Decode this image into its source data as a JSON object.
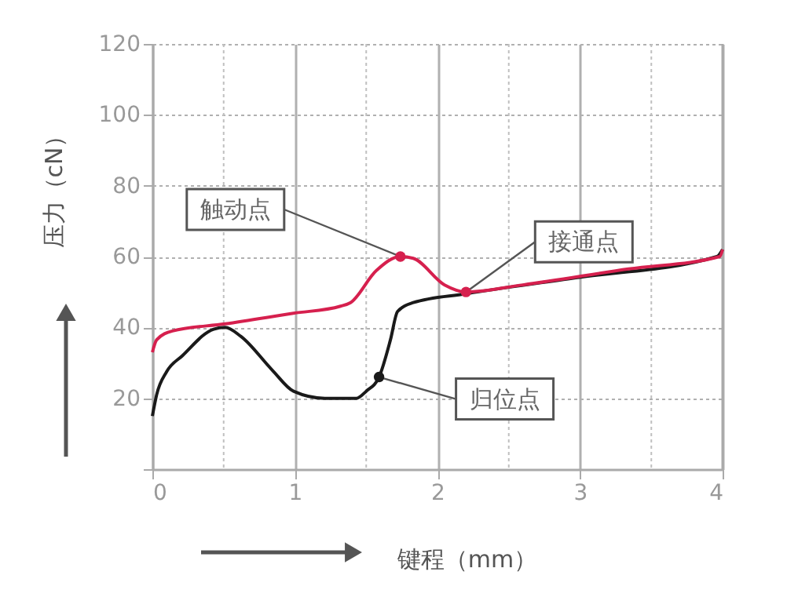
{
  "chart_data": {
    "type": "line",
    "xlabel": "键程（mm）",
    "ylabel": "压力（cN）",
    "xlim": [
      0,
      4
    ],
    "ylim": [
      0,
      120
    ],
    "xticks": [
      0,
      1,
      2,
      3,
      4
    ],
    "yticks": [
      {
        "value": 0,
        "label": null
      },
      20,
      40,
      60,
      80,
      100,
      120
    ],
    "grid": true,
    "series": [
      {
        "color": "#1a1a1a",
        "x": [
          0,
          0.03,
          0.1,
          0.21,
          0.43,
          0.51,
          0.62,
          0.84,
          0.99,
          1.21,
          1.43,
          1.5,
          1.59,
          1.67,
          1.72,
          1.83,
          2.2,
          2.97,
          3.96,
          4
        ],
        "values": [
          15,
          21,
          27.5,
          32,
          39.5,
          40,
          37.5,
          28,
          22,
          20,
          20,
          22,
          26,
          36.5,
          44.5,
          47,
          49.5,
          54,
          60,
          62
        ]
      },
      {
        "color": "#d6204e",
        "x": [
          0,
          0.03,
          0.14,
          0.51,
          0.99,
          1.32,
          1.39,
          1.57,
          1.74,
          1.83,
          2.05,
          2.2,
          2.6,
          3.34,
          3.98,
          4
        ],
        "values": [
          33,
          36.5,
          39,
          41,
          44,
          46,
          47,
          56,
          60,
          59.5,
          52,
          50,
          52,
          56.5,
          60,
          62
        ]
      }
    ],
    "annotations": [
      {
        "text": "触动点",
        "x": 1.74,
        "y": 60
      },
      {
        "text": "接通点",
        "x": 2.2,
        "y": 50
      },
      {
        "text": "归位点",
        "x": 1.59,
        "y": 26
      }
    ]
  }
}
